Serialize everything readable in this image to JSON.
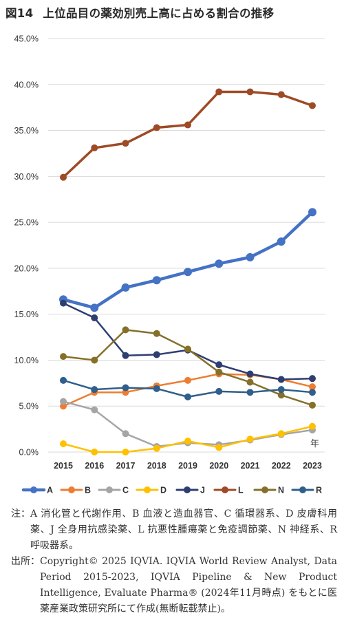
{
  "figure": {
    "number": "図14",
    "title": "上位品目の薬効別売上高に占める割合の推移"
  },
  "chart_data": {
    "type": "line",
    "x": [
      2015,
      2016,
      2017,
      2018,
      2019,
      2020,
      2021,
      2022,
      2023
    ],
    "x_tick_labels": [
      "2015",
      "2016",
      "2017",
      "2018",
      "2019",
      "2020",
      "2021",
      "2022",
      "2023"
    ],
    "x_unit_label": "年",
    "ylim": [
      0,
      45
    ],
    "y_tick_values": [
      0,
      5,
      10,
      15,
      20,
      25,
      30,
      35,
      40,
      45
    ],
    "y_tick_labels": [
      "0.0%",
      "5.0%",
      "10.0%",
      "15.0%",
      "20.0%",
      "25.0%",
      "30.0%",
      "35.0%",
      "40.0%",
      "45.0%"
    ],
    "grid": "horizontal",
    "legend_position": "bottom",
    "series": [
      {
        "name": "A",
        "color": "#4472C4",
        "width": 4.5,
        "values": [
          16.6,
          15.7,
          17.9,
          18.7,
          19.6,
          20.5,
          21.2,
          22.9,
          26.1
        ]
      },
      {
        "name": "B",
        "color": "#ED7D31",
        "width": 2.5,
        "values": [
          5.0,
          6.5,
          6.5,
          7.2,
          7.8,
          8.5,
          8.4,
          7.9,
          7.1
        ]
      },
      {
        "name": "C",
        "color": "#A5A5A5",
        "width": 2.5,
        "values": [
          5.5,
          4.6,
          2.0,
          0.6,
          1.0,
          0.8,
          1.3,
          1.9,
          2.4
        ]
      },
      {
        "name": "D",
        "color": "#FFC000",
        "width": 2.5,
        "values": [
          0.9,
          0.0,
          0.0,
          0.4,
          1.2,
          0.5,
          1.4,
          2.0,
          2.8
        ]
      },
      {
        "name": "J",
        "color": "#2E3E70",
        "width": 2.5,
        "values": [
          16.2,
          14.6,
          10.5,
          10.6,
          11.1,
          9.5,
          8.5,
          7.9,
          8.0
        ]
      },
      {
        "name": "L",
        "color": "#9E4A26",
        "width": 3.5,
        "values": [
          29.9,
          33.1,
          33.6,
          35.3,
          35.6,
          39.2,
          39.2,
          38.9,
          37.7
        ]
      },
      {
        "name": "N",
        "color": "#85702A",
        "width": 2.5,
        "values": [
          10.4,
          10.0,
          13.3,
          12.9,
          11.2,
          8.7,
          7.6,
          6.2,
          5.1
        ]
      },
      {
        "name": "R",
        "color": "#2F5F8A",
        "width": 2.5,
        "values": [
          7.8,
          6.8,
          7.0,
          6.9,
          6.0,
          6.6,
          6.5,
          6.8,
          6.5
        ]
      }
    ]
  },
  "notes": {
    "note_label": "注：",
    "note_text": "A 消化管と代謝作用、B 血液と造血器官、C 循環器系、D 皮膚科用薬、J 全身用抗感染薬、L 抗悪性腫瘍薬と免疫調節薬、N 神経系、R 呼吸器系。",
    "source_label": "出所：",
    "source_text": "Copyright© 2025 IQVIA. IQVIA World Review Analyst, Data Period 2015-2023, IQVIA Pipeline & New Product Intelligence, Evaluate Pharma® (2024年11月時点) をもとに医薬産業政策研究所にて作成(無断転載禁止)。"
  }
}
